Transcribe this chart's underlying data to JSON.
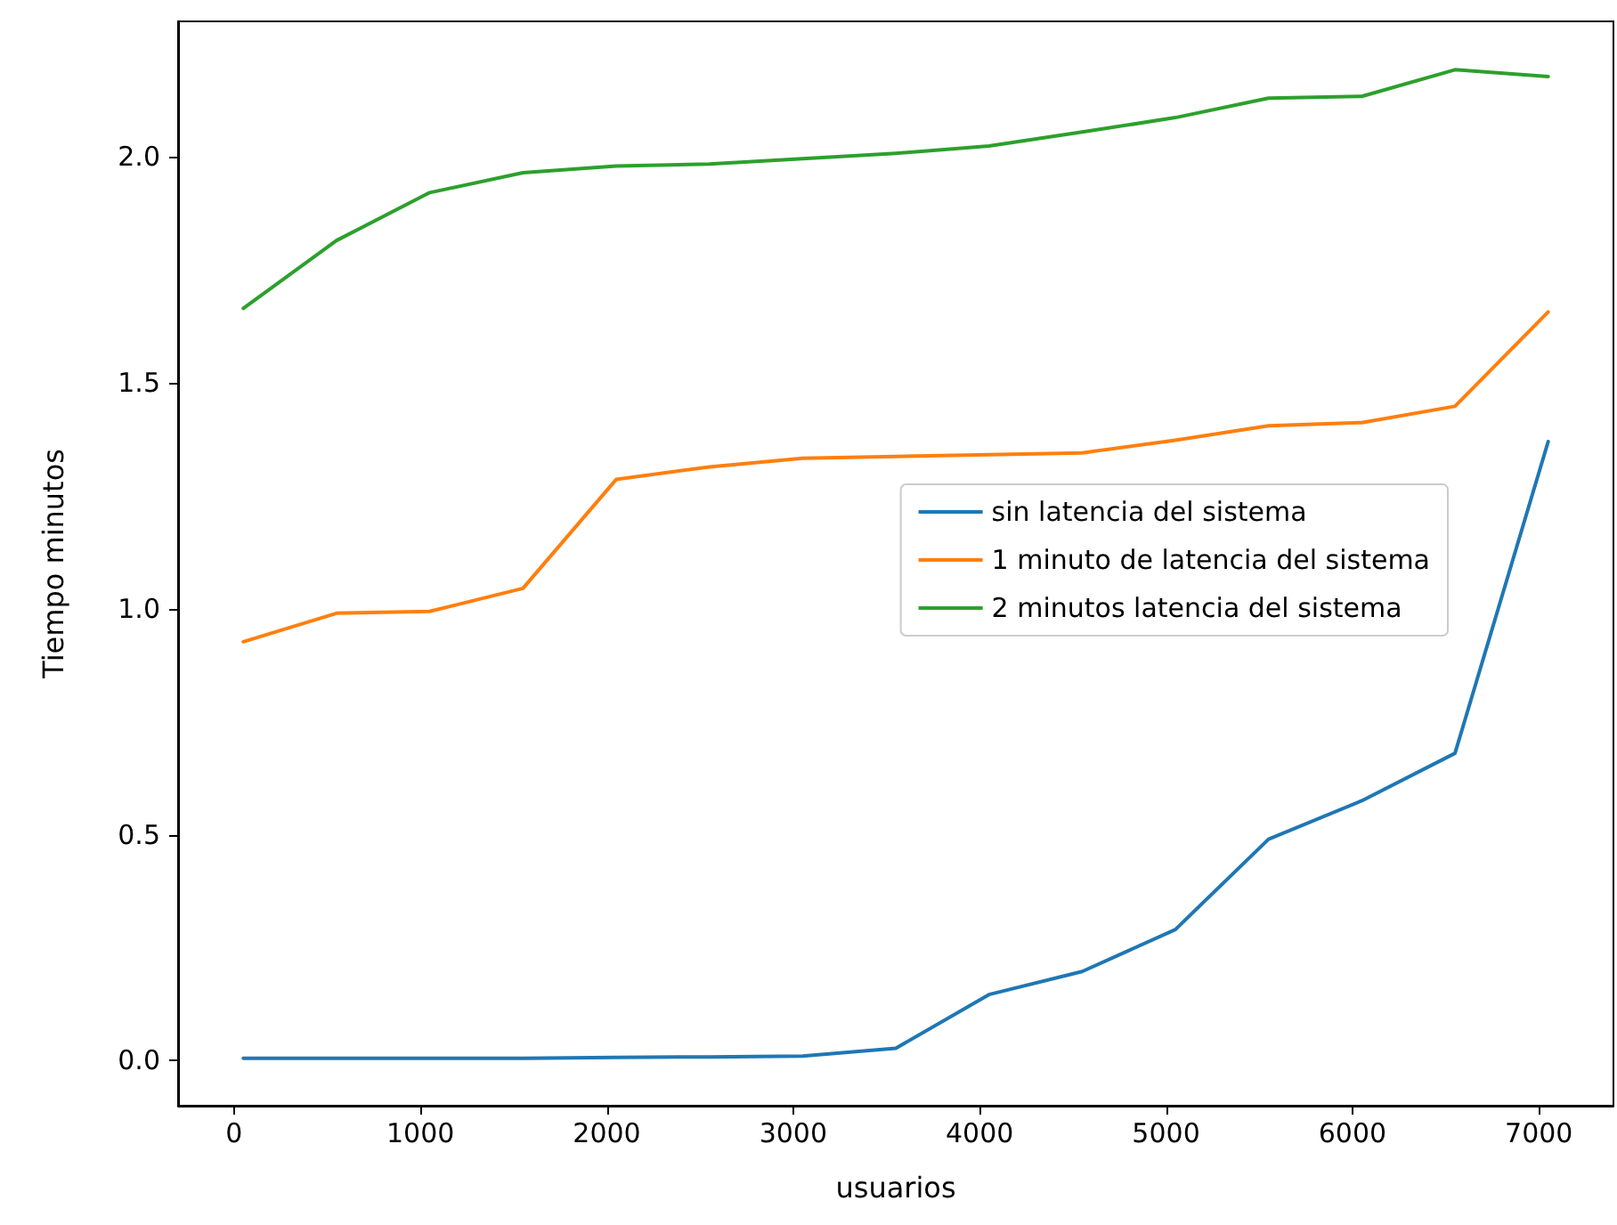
{
  "chart_data": {
    "type": "line",
    "xlabel": "usuarios",
    "ylabel": "Tiempo minutos",
    "x": [
      50,
      550,
      1050,
      1550,
      2050,
      2550,
      3050,
      3550,
      4050,
      4550,
      5050,
      5550,
      6050,
      6550,
      7050
    ],
    "series": [
      {
        "name": "sin latencia del sistema",
        "color": "#1f77b4",
        "values": [
          0.005,
          0.005,
          0.005,
          0.005,
          0.007,
          0.008,
          0.01,
          0.027,
          0.146,
          0.197,
          0.29,
          0.49,
          0.575,
          0.68,
          1.37
        ]
      },
      {
        "name": "1 minuto de latencia del sistema",
        "color": "#ff7f0e",
        "values": [
          0.927,
          0.99,
          0.994,
          1.045,
          1.286,
          1.314,
          1.333,
          1.337,
          1.341,
          1.345,
          1.373,
          1.405,
          1.412,
          1.448,
          1.657
        ]
      },
      {
        "name": "2 minutos latencia del sistema",
        "color": "#2ca02c",
        "values": [
          1.665,
          1.815,
          1.921,
          1.965,
          1.98,
          1.984,
          1.996,
          2.008,
          2.024,
          2.055,
          2.087,
          2.13,
          2.134,
          2.193,
          2.178
        ]
      }
    ],
    "xlim": [
      -300,
      7400
    ],
    "ylim": [
      -0.1,
      2.3
    ],
    "xticks": [
      0,
      1000,
      2000,
      3000,
      4000,
      5000,
      6000,
      7000
    ],
    "yticks": [
      {
        "value": 0,
        "label": "0.0"
      },
      {
        "value": 0.5,
        "label": "0.5"
      },
      {
        "value": 1,
        "label": "1.0"
      },
      {
        "value": 1.5,
        "label": "1.5"
      },
      {
        "value": 2,
        "label": "2.0"
      }
    ],
    "grid": false,
    "legend": "center right",
    "marker": "none",
    "line_style": "solid"
  }
}
